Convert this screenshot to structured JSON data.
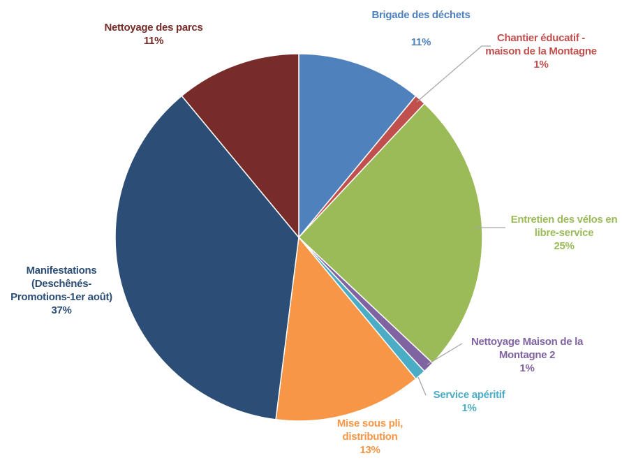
{
  "chart_data": {
    "type": "pie",
    "categories": [
      "Brigade des déchets",
      "Chantier éducatif - maison de la Montagne",
      "Entretien des vélos en libre-service",
      "Nettoyage Maison de la Montagne 2",
      "Service apéritif",
      "Mise sous pli, distribution",
      "Manifestations (Deschênés-Promotions-1er août)",
      "Nettoyage des parcs"
    ],
    "values": [
      11,
      1,
      25,
      1,
      1,
      13,
      37,
      11
    ],
    "value_labels": [
      "11%",
      "1%",
      "25%",
      "1%",
      "1%",
      "13%",
      "37%",
      "11%"
    ],
    "colors": [
      "#4f81bd",
      "#c0504d",
      "#9bbb59",
      "#8064a2",
      "#4bacc6",
      "#f79646",
      "#2c4d75",
      "#772c2a"
    ]
  }
}
